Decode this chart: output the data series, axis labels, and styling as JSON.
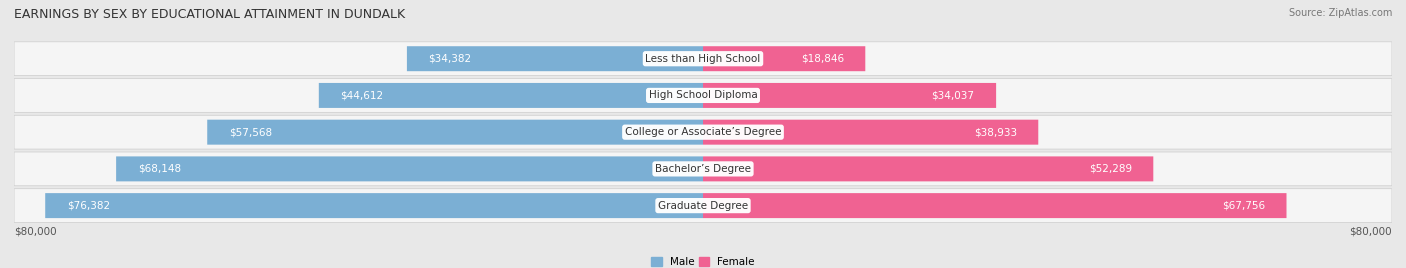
{
  "title": "EARNINGS BY SEX BY EDUCATIONAL ATTAINMENT IN DUNDALK",
  "source": "Source: ZipAtlas.com",
  "categories": [
    "Less than High School",
    "High School Diploma",
    "College or Associate’s Degree",
    "Bachelor’s Degree",
    "Graduate Degree"
  ],
  "male_values": [
    34382,
    44612,
    57568,
    68148,
    76382
  ],
  "female_values": [
    18846,
    34037,
    38933,
    52289,
    67756
  ],
  "male_color": "#7bafd4",
  "female_color": "#f06292",
  "male_label": "Male",
  "female_label": "Female",
  "axis_max": 80000,
  "bar_height": 0.68,
  "background_color": "#e8e8e8",
  "row_bg_color": "#f5f5f5",
  "row_border_color": "#cccccc",
  "title_fontsize": 9,
  "source_fontsize": 7,
  "label_fontsize": 7.5,
  "value_fontsize": 7.5,
  "category_fontsize": 7.5,
  "value_color_dark": "#555555",
  "value_color_white": "#ffffff"
}
